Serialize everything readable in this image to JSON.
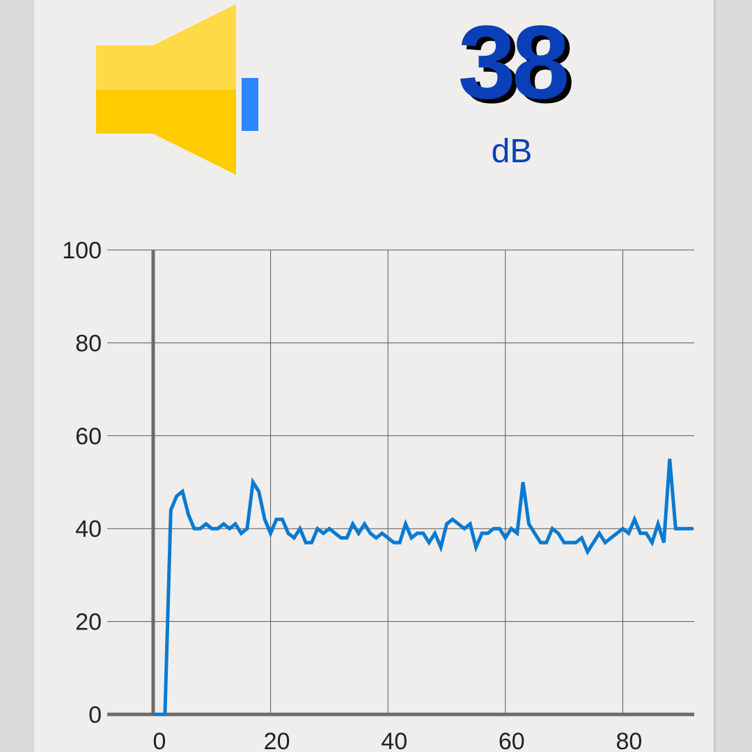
{
  "meter": {
    "speaker_icon": "speaker-volume-icon",
    "value": "38",
    "unit": "dB"
  },
  "colors": {
    "value_text": "#0b3fb8",
    "line": "#0a7ad1",
    "speaker_yellow": "#ffcc00",
    "speaker_wave": "#2b86ff"
  },
  "chart_data": {
    "type": "line",
    "title": "",
    "xlabel": "",
    "ylabel": "",
    "xlim": [
      -8,
      92
    ],
    "ylim": [
      0,
      100
    ],
    "grid": true,
    "x_ticks": [
      "0",
      "20",
      "40",
      "60",
      "80"
    ],
    "y_ticks": [
      "0",
      "20",
      "40",
      "60",
      "80",
      "100"
    ],
    "series": [
      {
        "values": [
          [
            0,
            0
          ],
          [
            1,
            0
          ],
          [
            2,
            0
          ],
          [
            3,
            44
          ],
          [
            4,
            47
          ],
          [
            5,
            48
          ],
          [
            6,
            43
          ],
          [
            7,
            40
          ],
          [
            8,
            40
          ],
          [
            9,
            41
          ],
          [
            10,
            40
          ],
          [
            11,
            40
          ],
          [
            12,
            41
          ],
          [
            13,
            40
          ],
          [
            14,
            41
          ],
          [
            15,
            39
          ],
          [
            16,
            40
          ],
          [
            17,
            50
          ],
          [
            18,
            48
          ],
          [
            19,
            42
          ],
          [
            20,
            39
          ],
          [
            21,
            42
          ],
          [
            22,
            42
          ],
          [
            23,
            39
          ],
          [
            24,
            38
          ],
          [
            25,
            40
          ],
          [
            26,
            37
          ],
          [
            27,
            37
          ],
          [
            28,
            40
          ],
          [
            29,
            39
          ],
          [
            30,
            40
          ],
          [
            31,
            39
          ],
          [
            32,
            38
          ],
          [
            33,
            38
          ],
          [
            34,
            41
          ],
          [
            35,
            39
          ],
          [
            36,
            41
          ],
          [
            37,
            39
          ],
          [
            38,
            38
          ],
          [
            39,
            39
          ],
          [
            40,
            38
          ],
          [
            41,
            37
          ],
          [
            42,
            37
          ],
          [
            43,
            41
          ],
          [
            44,
            38
          ],
          [
            45,
            39
          ],
          [
            46,
            39
          ],
          [
            47,
            37
          ],
          [
            48,
            39
          ],
          [
            49,
            36
          ],
          [
            50,
            41
          ],
          [
            51,
            42
          ],
          [
            52,
            41
          ],
          [
            53,
            40
          ],
          [
            54,
            41
          ],
          [
            55,
            36
          ],
          [
            56,
            39
          ],
          [
            57,
            39
          ],
          [
            58,
            40
          ],
          [
            59,
            40
          ],
          [
            60,
            38
          ],
          [
            61,
            40
          ],
          [
            62,
            39
          ],
          [
            63,
            50
          ],
          [
            64,
            41
          ],
          [
            65,
            39
          ],
          [
            66,
            37
          ],
          [
            67,
            37
          ],
          [
            68,
            40
          ],
          [
            69,
            39
          ],
          [
            70,
            37
          ],
          [
            71,
            37
          ],
          [
            72,
            37
          ],
          [
            73,
            38
          ],
          [
            74,
            35
          ],
          [
            75,
            37
          ],
          [
            76,
            39
          ],
          [
            77,
            37
          ],
          [
            78,
            38
          ],
          [
            79,
            39
          ],
          [
            80,
            40
          ],
          [
            81,
            39
          ],
          [
            82,
            42
          ],
          [
            83,
            39
          ],
          [
            84,
            39
          ],
          [
            85,
            37
          ],
          [
            86,
            41
          ],
          [
            87,
            37
          ],
          [
            88,
            55
          ],
          [
            89,
            40
          ],
          [
            90,
            40
          ],
          [
            91,
            40
          ],
          [
            92,
            40
          ]
        ]
      }
    ]
  }
}
